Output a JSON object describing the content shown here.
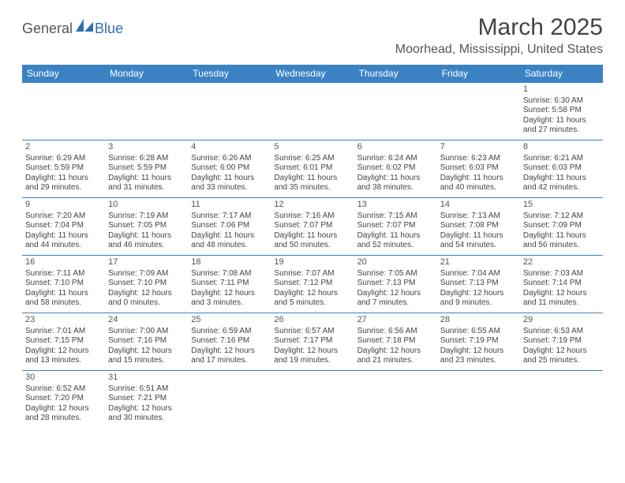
{
  "brand": {
    "part_a": "General",
    "part_b": "Blue"
  },
  "title": "March 2025",
  "location": "Moorhead, Mississippi, United States",
  "colors": {
    "header_bg": "#3b82c4",
    "header_text": "#ffffff",
    "grid_line": "#3b82c4",
    "page_bg": "#ffffff",
    "body_text": "#444444",
    "brand_gray": "#555555",
    "brand_blue": "#2e6fb0"
  },
  "fonts": {
    "title_size_pt": 30,
    "location_size_pt": 16,
    "header_size_pt": 12,
    "cell_size_pt": 10
  },
  "weekdays": [
    "Sunday",
    "Monday",
    "Tuesday",
    "Wednesday",
    "Thursday",
    "Friday",
    "Saturday"
  ],
  "weeks": [
    [
      null,
      null,
      null,
      null,
      null,
      null,
      {
        "n": "1",
        "sr": "Sunrise: 6:30 AM",
        "ss": "Sunset: 5:58 PM",
        "d1": "Daylight: 11 hours",
        "d2": "and 27 minutes."
      }
    ],
    [
      {
        "n": "2",
        "sr": "Sunrise: 6:29 AM",
        "ss": "Sunset: 5:59 PM",
        "d1": "Daylight: 11 hours",
        "d2": "and 29 minutes."
      },
      {
        "n": "3",
        "sr": "Sunrise: 6:28 AM",
        "ss": "Sunset: 5:59 PM",
        "d1": "Daylight: 11 hours",
        "d2": "and 31 minutes."
      },
      {
        "n": "4",
        "sr": "Sunrise: 6:26 AM",
        "ss": "Sunset: 6:00 PM",
        "d1": "Daylight: 11 hours",
        "d2": "and 33 minutes."
      },
      {
        "n": "5",
        "sr": "Sunrise: 6:25 AM",
        "ss": "Sunset: 6:01 PM",
        "d1": "Daylight: 11 hours",
        "d2": "and 35 minutes."
      },
      {
        "n": "6",
        "sr": "Sunrise: 6:24 AM",
        "ss": "Sunset: 6:02 PM",
        "d1": "Daylight: 11 hours",
        "d2": "and 38 minutes."
      },
      {
        "n": "7",
        "sr": "Sunrise: 6:23 AM",
        "ss": "Sunset: 6:03 PM",
        "d1": "Daylight: 11 hours",
        "d2": "and 40 minutes."
      },
      {
        "n": "8",
        "sr": "Sunrise: 6:21 AM",
        "ss": "Sunset: 6:03 PM",
        "d1": "Daylight: 11 hours",
        "d2": "and 42 minutes."
      }
    ],
    [
      {
        "n": "9",
        "sr": "Sunrise: 7:20 AM",
        "ss": "Sunset: 7:04 PM",
        "d1": "Daylight: 11 hours",
        "d2": "and 44 minutes."
      },
      {
        "n": "10",
        "sr": "Sunrise: 7:19 AM",
        "ss": "Sunset: 7:05 PM",
        "d1": "Daylight: 11 hours",
        "d2": "and 46 minutes."
      },
      {
        "n": "11",
        "sr": "Sunrise: 7:17 AM",
        "ss": "Sunset: 7:06 PM",
        "d1": "Daylight: 11 hours",
        "d2": "and 48 minutes."
      },
      {
        "n": "12",
        "sr": "Sunrise: 7:16 AM",
        "ss": "Sunset: 7:07 PM",
        "d1": "Daylight: 11 hours",
        "d2": "and 50 minutes."
      },
      {
        "n": "13",
        "sr": "Sunrise: 7:15 AM",
        "ss": "Sunset: 7:07 PM",
        "d1": "Daylight: 11 hours",
        "d2": "and 52 minutes."
      },
      {
        "n": "14",
        "sr": "Sunrise: 7:13 AM",
        "ss": "Sunset: 7:08 PM",
        "d1": "Daylight: 11 hours",
        "d2": "and 54 minutes."
      },
      {
        "n": "15",
        "sr": "Sunrise: 7:12 AM",
        "ss": "Sunset: 7:09 PM",
        "d1": "Daylight: 11 hours",
        "d2": "and 56 minutes."
      }
    ],
    [
      {
        "n": "16",
        "sr": "Sunrise: 7:11 AM",
        "ss": "Sunset: 7:10 PM",
        "d1": "Daylight: 11 hours",
        "d2": "and 58 minutes."
      },
      {
        "n": "17",
        "sr": "Sunrise: 7:09 AM",
        "ss": "Sunset: 7:10 PM",
        "d1": "Daylight: 12 hours",
        "d2": "and 0 minutes."
      },
      {
        "n": "18",
        "sr": "Sunrise: 7:08 AM",
        "ss": "Sunset: 7:11 PM",
        "d1": "Daylight: 12 hours",
        "d2": "and 3 minutes."
      },
      {
        "n": "19",
        "sr": "Sunrise: 7:07 AM",
        "ss": "Sunset: 7:12 PM",
        "d1": "Daylight: 12 hours",
        "d2": "and 5 minutes."
      },
      {
        "n": "20",
        "sr": "Sunrise: 7:05 AM",
        "ss": "Sunset: 7:13 PM",
        "d1": "Daylight: 12 hours",
        "d2": "and 7 minutes."
      },
      {
        "n": "21",
        "sr": "Sunrise: 7:04 AM",
        "ss": "Sunset: 7:13 PM",
        "d1": "Daylight: 12 hours",
        "d2": "and 9 minutes."
      },
      {
        "n": "22",
        "sr": "Sunrise: 7:03 AM",
        "ss": "Sunset: 7:14 PM",
        "d1": "Daylight: 12 hours",
        "d2": "and 11 minutes."
      }
    ],
    [
      {
        "n": "23",
        "sr": "Sunrise: 7:01 AM",
        "ss": "Sunset: 7:15 PM",
        "d1": "Daylight: 12 hours",
        "d2": "and 13 minutes."
      },
      {
        "n": "24",
        "sr": "Sunrise: 7:00 AM",
        "ss": "Sunset: 7:16 PM",
        "d1": "Daylight: 12 hours",
        "d2": "and 15 minutes."
      },
      {
        "n": "25",
        "sr": "Sunrise: 6:59 AM",
        "ss": "Sunset: 7:16 PM",
        "d1": "Daylight: 12 hours",
        "d2": "and 17 minutes."
      },
      {
        "n": "26",
        "sr": "Sunrise: 6:57 AM",
        "ss": "Sunset: 7:17 PM",
        "d1": "Daylight: 12 hours",
        "d2": "and 19 minutes."
      },
      {
        "n": "27",
        "sr": "Sunrise: 6:56 AM",
        "ss": "Sunset: 7:18 PM",
        "d1": "Daylight: 12 hours",
        "d2": "and 21 minutes."
      },
      {
        "n": "28",
        "sr": "Sunrise: 6:55 AM",
        "ss": "Sunset: 7:19 PM",
        "d1": "Daylight: 12 hours",
        "d2": "and 23 minutes."
      },
      {
        "n": "29",
        "sr": "Sunrise: 6:53 AM",
        "ss": "Sunset: 7:19 PM",
        "d1": "Daylight: 12 hours",
        "d2": "and 25 minutes."
      }
    ],
    [
      {
        "n": "30",
        "sr": "Sunrise: 6:52 AM",
        "ss": "Sunset: 7:20 PM",
        "d1": "Daylight: 12 hours",
        "d2": "and 28 minutes."
      },
      {
        "n": "31",
        "sr": "Sunrise: 6:51 AM",
        "ss": "Sunset: 7:21 PM",
        "d1": "Daylight: 12 hours",
        "d2": "and 30 minutes."
      },
      null,
      null,
      null,
      null,
      null
    ]
  ]
}
